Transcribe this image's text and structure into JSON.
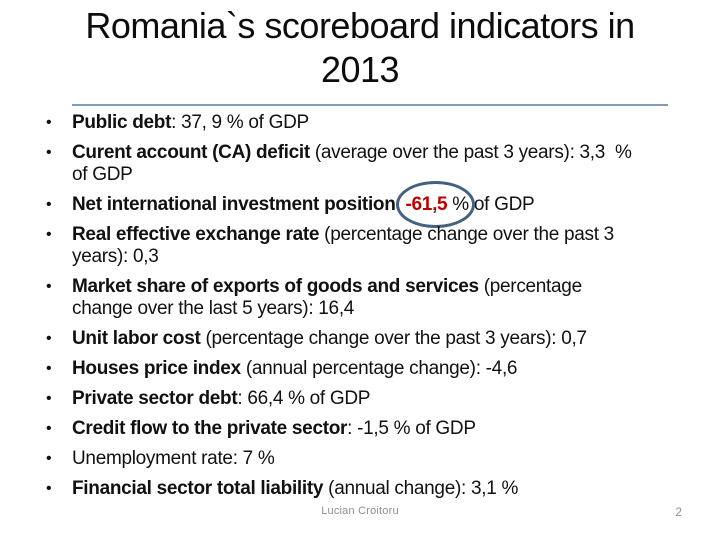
{
  "slide": {
    "title_line1": "Romania`s scoreboard indicators in",
    "title_line2": "2013",
    "colors": {
      "accent_red": "#c00000",
      "ellipse_stroke": "#44617f",
      "divider": "#7f9db9",
      "footer_text": "#8f8f8f"
    },
    "bullets": [
      {
        "segments": [
          {
            "text": "Public debt",
            "bold": true
          },
          {
            "text": ": 37, 9 % of GDP"
          }
        ]
      },
      {
        "segments": [
          {
            "text": "Curent account (CA) deficit",
            "bold": true
          },
          {
            "text": " (average over the past 3 years): 3,3  % of GDP"
          }
        ]
      },
      {
        "segments": [
          {
            "text": "Net international investment position",
            "bold": true
          },
          {
            "text": ": "
          },
          {
            "circled": true,
            "parts": [
              {
                "text": "-61,5",
                "bold": true,
                "red": true
              },
              {
                "text": " %"
              }
            ]
          },
          {
            "text": " of GDP"
          }
        ]
      },
      {
        "segments": [
          {
            "text": "Real effective exchange rate",
            "bold": true
          },
          {
            "text": " (percentage change over the past 3 years): 0,3"
          }
        ]
      },
      {
        "segments": [
          {
            "text": "Market share of exports of goods and services",
            "bold": true
          },
          {
            "text": " (percentage change over the last 5 years): 16,4"
          }
        ]
      },
      {
        "segments": [
          {
            "text": "Unit labor cost",
            "bold": true
          },
          {
            "text": " (percentage change over the past 3 years): 0,7"
          }
        ]
      },
      {
        "segments": [
          {
            "text": "Houses price index",
            "bold": true
          },
          {
            "text": " (annual percentage change): -4,6"
          }
        ]
      },
      {
        "segments": [
          {
            "text": "Private sector debt",
            "bold": true
          },
          {
            "text": ": 66,4 % of GDP"
          }
        ]
      },
      {
        "segments": [
          {
            "text": "Credit flow to the private sector",
            "bold": true
          },
          {
            "text": ": -1,5 % of GDP"
          }
        ]
      },
      {
        "segments": [
          {
            "text": "Unemployment rate: 7 %"
          }
        ]
      },
      {
        "segments": [
          {
            "text": "Financial sector total liability",
            "bold": true
          },
          {
            "text": " (annual change): 3,1 %"
          }
        ]
      }
    ],
    "footer": {
      "author": "Lucian Croitoru",
      "page_number": "2"
    }
  }
}
